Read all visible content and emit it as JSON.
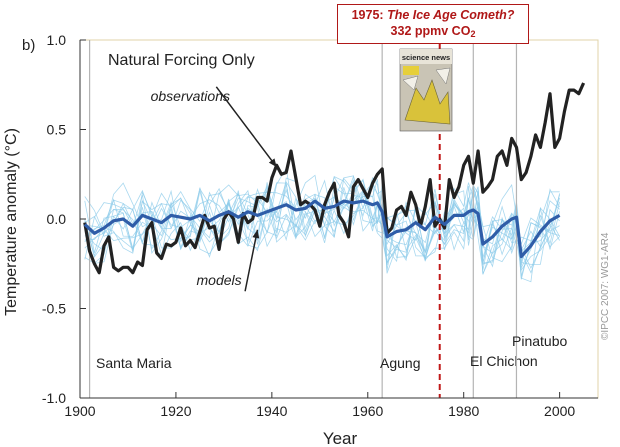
{
  "panel_label": "b)",
  "callout": {
    "year": "1975:",
    "title": "The Ice Age Cometh?",
    "co2_value": "332 ppmv CO",
    "co2_sub": "2"
  },
  "magazine": {
    "masthead": "science news"
  },
  "copyright": "©IPCC 2007: WG1-AR4",
  "colors": {
    "observations": "#222222",
    "model_mean": "#2f5da8",
    "model_runs": "#8ccbea",
    "event_lines": "#b4b4b4",
    "marker_1975": "#c01818",
    "plot_frame": "#e0d3a8"
  },
  "chart_data": {
    "type": "line",
    "title": "Natural Forcing Only",
    "xlabel": "Year",
    "ylabel": "Temperature anomaly (°C)",
    "xlim": [
      1900,
      2008
    ],
    "ylim": [
      -1.0,
      1.0
    ],
    "xticks": [
      1900,
      1920,
      1940,
      1960,
      1980,
      2000
    ],
    "yticks": [
      "1.0",
      "0.5",
      "0.0",
      "-0.5",
      "-1.0"
    ],
    "yticks_values": [
      1.0,
      0.5,
      0.0,
      -0.5,
      -1.0
    ],
    "grid": false,
    "annotations": [
      {
        "text": "observations",
        "x": 1923,
        "y": 0.66,
        "arrow_to": [
          1941,
          0.29
        ]
      },
      {
        "text": "models",
        "x": 1929,
        "y": -0.37,
        "arrow_to": [
          1937,
          -0.06
        ]
      }
    ],
    "event_lines": [
      {
        "name": "Santa Maria",
        "year": 1902
      },
      {
        "name": "Agung",
        "year": 1963
      },
      {
        "name": "El Chichon",
        "year": 1982
      },
      {
        "name": "Pinatubo",
        "year": 1991
      }
    ],
    "marker_line": {
      "year": 1975,
      "style": "dashed"
    },
    "series": [
      {
        "name": "observations",
        "x": [
          1901,
          1902,
          1903,
          1904,
          1905,
          1906,
          1907,
          1908,
          1909,
          1910,
          1911,
          1912,
          1913,
          1914,
          1915,
          1916,
          1917,
          1918,
          1919,
          1920,
          1921,
          1922,
          1923,
          1924,
          1925,
          1926,
          1927,
          1928,
          1929,
          1930,
          1931,
          1932,
          1933,
          1934,
          1935,
          1936,
          1937,
          1938,
          1939,
          1940,
          1941,
          1942,
          1943,
          1944,
          1945,
          1946,
          1947,
          1948,
          1949,
          1950,
          1951,
          1952,
          1953,
          1954,
          1955,
          1956,
          1957,
          1958,
          1959,
          1960,
          1961,
          1962,
          1963,
          1964,
          1965,
          1966,
          1967,
          1968,
          1969,
          1970,
          1971,
          1972,
          1973,
          1974,
          1975,
          1976,
          1977,
          1978,
          1979,
          1980,
          1981,
          1982,
          1983,
          1984,
          1985,
          1986,
          1987,
          1988,
          1989,
          1990,
          1991,
          1992,
          1993,
          1994,
          1995,
          1996,
          1997,
          1998,
          1999,
          2000,
          2001,
          2002,
          2003,
          2004,
          2005
        ],
        "values": [
          -0.02,
          -0.18,
          -0.25,
          -0.3,
          -0.15,
          -0.1,
          -0.27,
          -0.29,
          -0.27,
          -0.27,
          -0.3,
          -0.24,
          -0.26,
          -0.06,
          -0.02,
          -0.19,
          -0.22,
          -0.14,
          -0.15,
          -0.13,
          -0.05,
          -0.15,
          -0.12,
          -0.16,
          -0.07,
          0.02,
          -0.05,
          -0.04,
          -0.17,
          0.0,
          0.04,
          0.0,
          -0.13,
          0.03,
          -0.02,
          0.0,
          0.12,
          0.12,
          0.1,
          0.23,
          0.3,
          0.25,
          0.26,
          0.38,
          0.23,
          0.08,
          0.1,
          0.08,
          0.05,
          -0.04,
          0.08,
          0.15,
          0.2,
          0.02,
          -0.02,
          -0.1,
          0.18,
          0.22,
          0.17,
          0.12,
          0.2,
          0.25,
          0.28,
          -0.08,
          -0.05,
          0.05,
          0.07,
          0.02,
          0.15,
          0.08,
          -0.04,
          0.07,
          0.22,
          -0.04,
          0.0,
          -0.05,
          0.22,
          0.12,
          0.18,
          0.3,
          0.35,
          0.2,
          0.38,
          0.15,
          0.18,
          0.22,
          0.35,
          0.38,
          0.3,
          0.45,
          0.4,
          0.22,
          0.26,
          0.35,
          0.47,
          0.4,
          0.54,
          0.7,
          0.4,
          0.45,
          0.6,
          0.72,
          0.72,
          0.7,
          0.76
        ]
      },
      {
        "name": "models",
        "x": [
          1901,
          1903,
          1905,
          1907,
          1909,
          1911,
          1913,
          1915,
          1917,
          1919,
          1921,
          1923,
          1925,
          1927,
          1929,
          1931,
          1933,
          1935,
          1937,
          1939,
          1941,
          1943,
          1945,
          1947,
          1949,
          1951,
          1953,
          1955,
          1957,
          1959,
          1961,
          1962,
          1963,
          1964,
          1966,
          1968,
          1970,
          1972,
          1974,
          1976,
          1978,
          1980,
          1981,
          1982,
          1983,
          1984,
          1986,
          1988,
          1990,
          1991,
          1992,
          1994,
          1996,
          1998,
          2000
        ],
        "values": [
          -0.03,
          -0.08,
          -0.05,
          -0.01,
          0.0,
          -0.04,
          0.02,
          0.0,
          -0.02,
          0.02,
          0.01,
          0.0,
          0.02,
          -0.01,
          0.02,
          0.04,
          0.01,
          0.04,
          0.02,
          0.04,
          0.06,
          0.08,
          0.05,
          0.06,
          0.1,
          0.06,
          0.07,
          0.1,
          0.09,
          0.1,
          0.08,
          0.09,
          0.04,
          -0.1,
          -0.07,
          -0.06,
          -0.02,
          -0.06,
          0.01,
          -0.03,
          0.02,
          0.02,
          0.04,
          0.05,
          0.03,
          -0.14,
          -0.1,
          -0.04,
          0.0,
          0.01,
          -0.21,
          -0.15,
          -0.07,
          -0.01,
          0.02
        ]
      }
    ]
  }
}
